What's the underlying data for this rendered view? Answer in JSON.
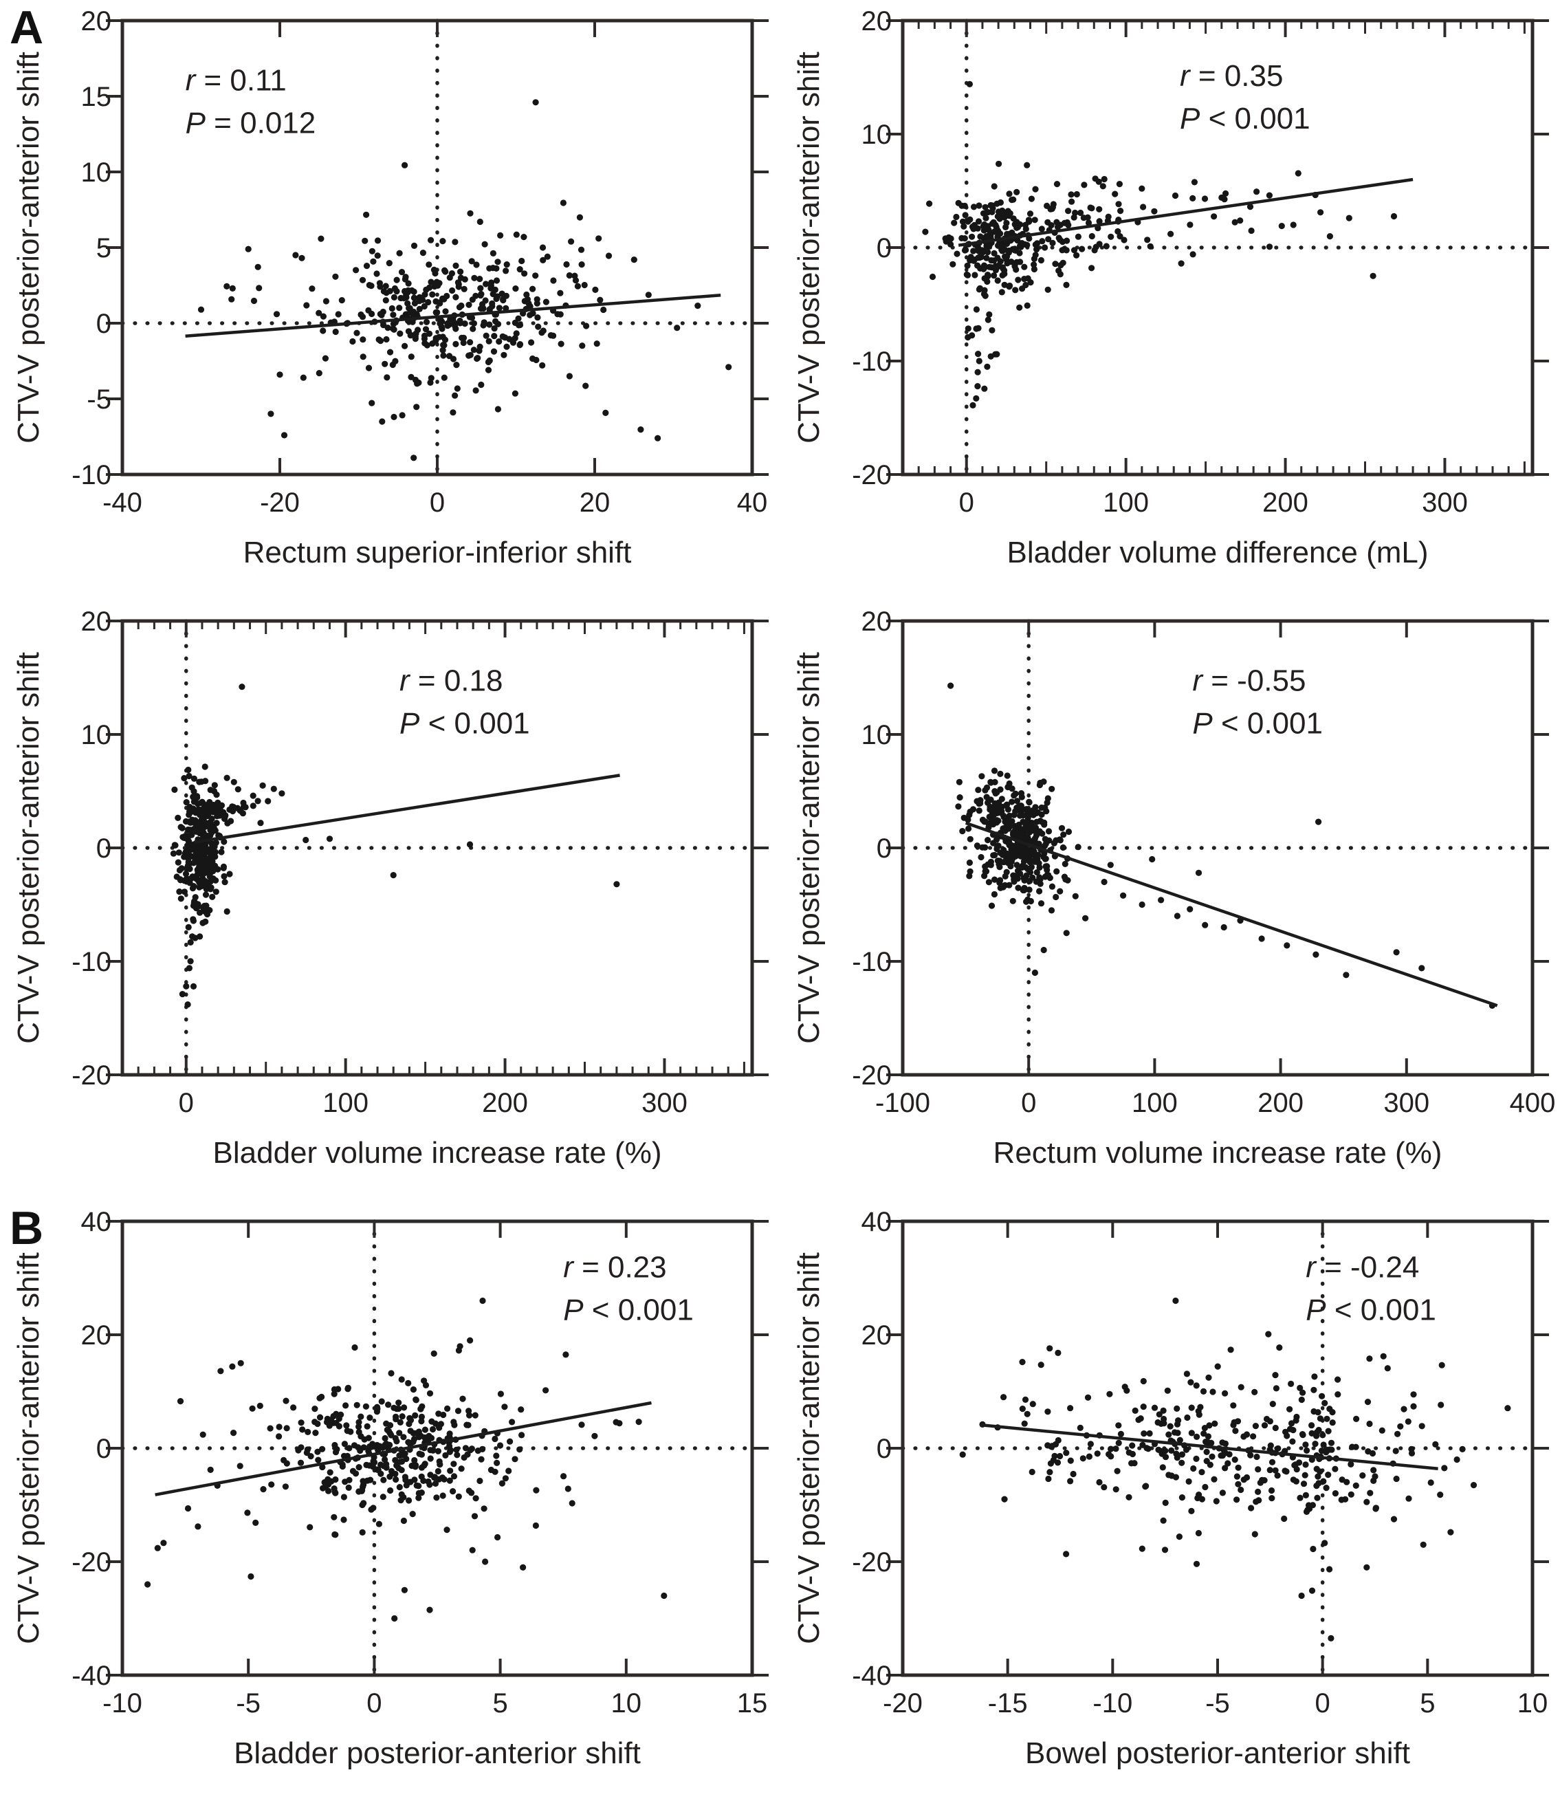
{
  "panels": {
    "a": "A",
    "b": "B"
  },
  "chart_data": [
    {
      "id": "rectum-si-shift",
      "type": "scatter",
      "xlabel": "Rectum superior-inferior shift",
      "ylabel": "CTV-V posterior-anterior shift",
      "xlim": [
        -40,
        40
      ],
      "ylim": [
        -10,
        20
      ],
      "xticks": [
        -40,
        -20,
        0,
        20,
        40
      ],
      "yticks": [
        -10,
        -5,
        0,
        5,
        10,
        15,
        20
      ],
      "x_minor_step": null,
      "ref_x": 0,
      "ref_y": 0,
      "annotation": {
        "line1_var": "r",
        "line1_rest": " = 0.11",
        "line2_var": "P",
        "line2_rest": " = 0.012",
        "fx": 0.1,
        "fy": 0.09
      },
      "regression": [
        [
          -32,
          -0.85
        ],
        [
          36,
          1.85
        ]
      ],
      "seed": 11,
      "clusters": [
        {
          "n": 310,
          "cx": 1.5,
          "cy": 0.7,
          "sx": 7.0,
          "sy": 2.1
        },
        {
          "n": 70,
          "cx": 0.0,
          "cy": 0.3,
          "sx": 13.0,
          "sy": 3.4
        }
      ],
      "points": [
        [
          12.5,
          14.6
        ],
        [
          -3,
          -8.9
        ],
        [
          -5.5,
          -6.2
        ],
        [
          -7,
          -6.5
        ],
        [
          28,
          -7.6
        ],
        [
          37,
          -2.9
        ],
        [
          -20,
          -3.4
        ],
        [
          -26,
          2.3
        ],
        [
          25,
          4.2
        ],
        [
          20.5,
          5.6
        ],
        [
          -24,
          4.9
        ],
        [
          -18,
          4.5
        ],
        [
          17,
          5.4
        ],
        [
          -30,
          0.9
        ],
        [
          8,
          5.8
        ],
        [
          11,
          5.7
        ],
        [
          14,
          4.4
        ],
        [
          -15,
          -3.3
        ],
        [
          -17,
          -3.6
        ],
        [
          2,
          -5.9
        ]
      ]
    },
    {
      "id": "bladder-volume-difference",
      "type": "scatter",
      "xlabel": "Bladder volume difference (mL)",
      "ylabel": "CTV-V posterior-anterior shift",
      "xlim": [
        -40,
        355
      ],
      "ylim": [
        -20,
        20
      ],
      "xticks": [
        0,
        100,
        200,
        300
      ],
      "yticks": [
        -20,
        -10,
        0,
        10,
        20
      ],
      "x_minor_step": 10,
      "ref_x": 0,
      "ref_y": 0,
      "annotation": {
        "line1_var": "r",
        "line1_rest": " = 0.35",
        "line2_var": "P",
        "line2_rest": " < 0.001",
        "fx": 0.44,
        "fy": 0.08
      },
      "regression": [
        [
          -5,
          0.2
        ],
        [
          280,
          6.0
        ]
      ],
      "seed": 35,
      "clusters": [
        {
          "n": 200,
          "cx": 18,
          "cy": 0.2,
          "sx": 14,
          "sy": 2.0
        },
        {
          "n": 110,
          "cx": 55,
          "cy": 1.2,
          "sx": 30,
          "sy": 2.2
        },
        {
          "n": 22,
          "cx": 9,
          "cy": -7.5,
          "sx": 5,
          "sy": 3.0
        },
        {
          "n": 26,
          "cx": 150,
          "cy": 2.6,
          "sx": 55,
          "sy": 1.6
        }
      ],
      "points": [
        [
          2,
          14.4
        ],
        [
          255,
          -2.5
        ],
        [
          4,
          -13.9
        ],
        [
          13,
          -10.5
        ],
        [
          8,
          -10
        ],
        [
          222,
          3.1
        ],
        [
          190,
          4.6
        ],
        [
          160,
          4.4
        ],
        [
          110,
          5.2
        ],
        [
          96,
          5.6
        ],
        [
          83,
          5.8
        ],
        [
          240,
          2.6
        ],
        [
          205,
          2.0
        ],
        [
          178,
          3.6
        ],
        [
          128,
          1.2
        ],
        [
          142,
          -0.6
        ]
      ]
    },
    {
      "id": "bladder-volume-increase-rate",
      "type": "scatter",
      "xlabel": "Bladder volume increase rate (%)",
      "ylabel": "CTV-V posterior-anterior shift",
      "xlim": [
        -40,
        355
      ],
      "ylim": [
        -20,
        20
      ],
      "xticks": [
        0,
        100,
        200,
        300
      ],
      "yticks": [
        -20,
        -10,
        0,
        10,
        20
      ],
      "x_minor_step": 10,
      "ref_x": 0,
      "ref_y": 0,
      "annotation": {
        "line1_var": "r",
        "line1_rest": " = 0.18",
        "line2_var": "P",
        "line2_rest": " < 0.001",
        "fx": 0.44,
        "fy": 0.09
      },
      "regression": [
        [
          5,
          0.5
        ],
        [
          272,
          6.4
        ]
      ],
      "seed": 18,
      "clusters": [
        {
          "n": 290,
          "cx": 9,
          "cy": -0.3,
          "sx": 7,
          "sy": 2.6
        },
        {
          "n": 45,
          "cx": 22,
          "cy": 3.2,
          "sx": 13,
          "sy": 1.3
        },
        {
          "n": 14,
          "cx": 4,
          "cy": -8,
          "sx": 3,
          "sy": 3.2
        }
      ],
      "points": [
        [
          35,
          14.2
        ],
        [
          90,
          0.8
        ],
        [
          130,
          -2.4
        ],
        [
          270,
          -3.2
        ],
        [
          75,
          0.7
        ],
        [
          1,
          -13.8
        ],
        [
          0,
          -12.2
        ],
        [
          2,
          -10.6
        ],
        [
          178,
          0.3
        ],
        [
          60,
          4.8
        ],
        [
          55,
          5.2
        ],
        [
          48,
          5.5
        ],
        [
          42,
          4.6
        ],
        [
          5,
          6.1
        ],
        [
          12,
          5.9
        ],
        [
          30,
          5.8
        ]
      ]
    },
    {
      "id": "rectum-volume-increase-rate",
      "type": "scatter",
      "xlabel": "Rectum volume increase rate (%)",
      "ylabel": "CTV-V posterior-anterior shift",
      "xlim": [
        -100,
        400
      ],
      "ylim": [
        -20,
        20
      ],
      "xticks": [
        -100,
        0,
        100,
        200,
        300,
        400
      ],
      "yticks": [
        -20,
        -10,
        0,
        10,
        20
      ],
      "x_minor_step": null,
      "ref_x": 0,
      "ref_y": 0,
      "annotation": {
        "line1_var": "r",
        "line1_rest": " = -0.55",
        "line2_var": "P",
        "line2_rest": " < 0.001",
        "fx": 0.46,
        "fy": 0.09
      },
      "regression": [
        [
          -50,
          2.2
        ],
        [
          372,
          -13.9
        ]
      ],
      "seed": 55,
      "clusters": [
        {
          "n": 300,
          "cx": -8,
          "cy": 0.4,
          "sx": 16,
          "sy": 2.3
        },
        {
          "n": 60,
          "cx": -28,
          "cy": 3.4,
          "sx": 11,
          "sy": 1.3
        },
        {
          "n": 26,
          "cx": 15,
          "cy": -2.5,
          "sx": 18,
          "sy": 1.8
        }
      ],
      "points": [
        [
          60,
          -3
        ],
        [
          75,
          -4.2
        ],
        [
          90,
          -5
        ],
        [
          105,
          -4.6
        ],
        [
          118,
          -6
        ],
        [
          128,
          -5.4
        ],
        [
          140,
          -6.8
        ],
        [
          155,
          -7
        ],
        [
          168,
          -6.4
        ],
        [
          185,
          -8
        ],
        [
          205,
          -8.6
        ],
        [
          228,
          -9.4
        ],
        [
          252,
          -11.2
        ],
        [
          292,
          -9.2
        ],
        [
          312,
          -10.6
        ],
        [
          368,
          -13.9
        ],
        [
          230,
          2.3
        ],
        [
          -62,
          14.3
        ],
        [
          -55,
          5.8
        ],
        [
          12,
          -9
        ],
        [
          30,
          -7.5
        ],
        [
          45,
          -6.2
        ],
        [
          5,
          -11
        ],
        [
          98,
          -1
        ],
        [
          135,
          -2.2
        ],
        [
          65,
          -1.5
        ]
      ]
    },
    {
      "id": "bladder-pa-shift",
      "type": "scatter",
      "xlabel": "Bladder posterior-anterior shift",
      "ylabel": "CTV-V posterior-anterior shift",
      "xlim": [
        -10,
        15
      ],
      "ylim": [
        -40,
        40
      ],
      "xticks": [
        -10,
        -5,
        0,
        5,
        10,
        15
      ],
      "yticks": [
        -40,
        -20,
        0,
        20,
        40
      ],
      "x_minor_step": null,
      "ref_x": 0,
      "ref_y": 0,
      "annotation": {
        "line1_var": "r",
        "line1_rest": " = 0.23",
        "line2_var": "P",
        "line2_rest": " < 0.001",
        "fx": 0.7,
        "fy": 0.06
      },
      "regression": [
        [
          -8.7,
          -8.2
        ],
        [
          11,
          8.0
        ]
      ],
      "seed": 23,
      "clusters": [
        {
          "n": 300,
          "cx": 0.7,
          "cy": -0.8,
          "sx": 2.1,
          "sy": 5.5
        },
        {
          "n": 80,
          "cx": 0.2,
          "cy": -2.0,
          "sx": 3.6,
          "sy": 9.5
        }
      ],
      "points": [
        [
          4.3,
          26
        ],
        [
          7.6,
          16.5
        ],
        [
          -8.6,
          -17.6
        ],
        [
          -9,
          -24
        ],
        [
          11.5,
          -26
        ],
        [
          2.2,
          -28.5
        ],
        [
          1.2,
          -25
        ],
        [
          -6.1,
          13.6
        ],
        [
          -5.3,
          15
        ],
        [
          9.6,
          4.6
        ],
        [
          3.8,
          19
        ],
        [
          4.4,
          -20
        ],
        [
          6.8,
          10.2
        ],
        [
          -4.9,
          -22.6
        ],
        [
          -7,
          -13.8
        ],
        [
          -6.8,
          2.4
        ],
        [
          5.9,
          -21
        ],
        [
          0.8,
          -30
        ]
      ]
    },
    {
      "id": "bowel-pa-shift",
      "type": "scatter",
      "xlabel": "Bowel posterior-anterior shift",
      "ylabel": "CTV-V posterior-anterior shift",
      "xlim": [
        -20,
        10
      ],
      "ylim": [
        -40,
        40
      ],
      "xticks": [
        -20,
        -15,
        -10,
        -5,
        0,
        5,
        10
      ],
      "yticks": [
        -40,
        -20,
        0,
        20,
        40
      ],
      "x_minor_step": null,
      "ref_x": 0,
      "ref_y": 0,
      "annotation": {
        "line1_var": "r",
        "line1_rest": " = -0.24",
        "line2_var": "P",
        "line2_rest": " < 0.001",
        "fx": 0.64,
        "fy": 0.06
      },
      "regression": [
        [
          -16.3,
          4.1
        ],
        [
          5.5,
          -3.6
        ]
      ],
      "seed": 24,
      "clusters": [
        {
          "n": 250,
          "cx": -4.5,
          "cy": -0.5,
          "sx": 4.6,
          "sy": 6.5
        },
        {
          "n": 50,
          "cx": -0.3,
          "cy": -2.5,
          "sx": 0.7,
          "sy": 7.5
        },
        {
          "n": 45,
          "cx": -9,
          "cy": 2.0,
          "sx": 3.5,
          "sy": 5.0
        }
      ],
      "points": [
        [
          -7,
          26
        ],
        [
          -13,
          17.6
        ],
        [
          -12.6,
          16.8
        ],
        [
          -14.3,
          15.2
        ],
        [
          2.9,
          16.2
        ],
        [
          3.1,
          14.1
        ],
        [
          -6,
          -20.4
        ],
        [
          -1,
          -26
        ],
        [
          0.4,
          -33.5
        ],
        [
          2.1,
          -21
        ],
        [
          5.6,
          -8.2
        ],
        [
          6.1,
          -14.8
        ],
        [
          -16.2,
          4.2
        ],
        [
          4.8,
          -17
        ],
        [
          6.4,
          -2
        ],
        [
          7.2,
          -6.5
        ],
        [
          -15.2,
          9
        ],
        [
          -13.8,
          7.8
        ],
        [
          3.4,
          -12.5
        ],
        [
          5.8,
          -3.5
        ]
      ]
    }
  ]
}
